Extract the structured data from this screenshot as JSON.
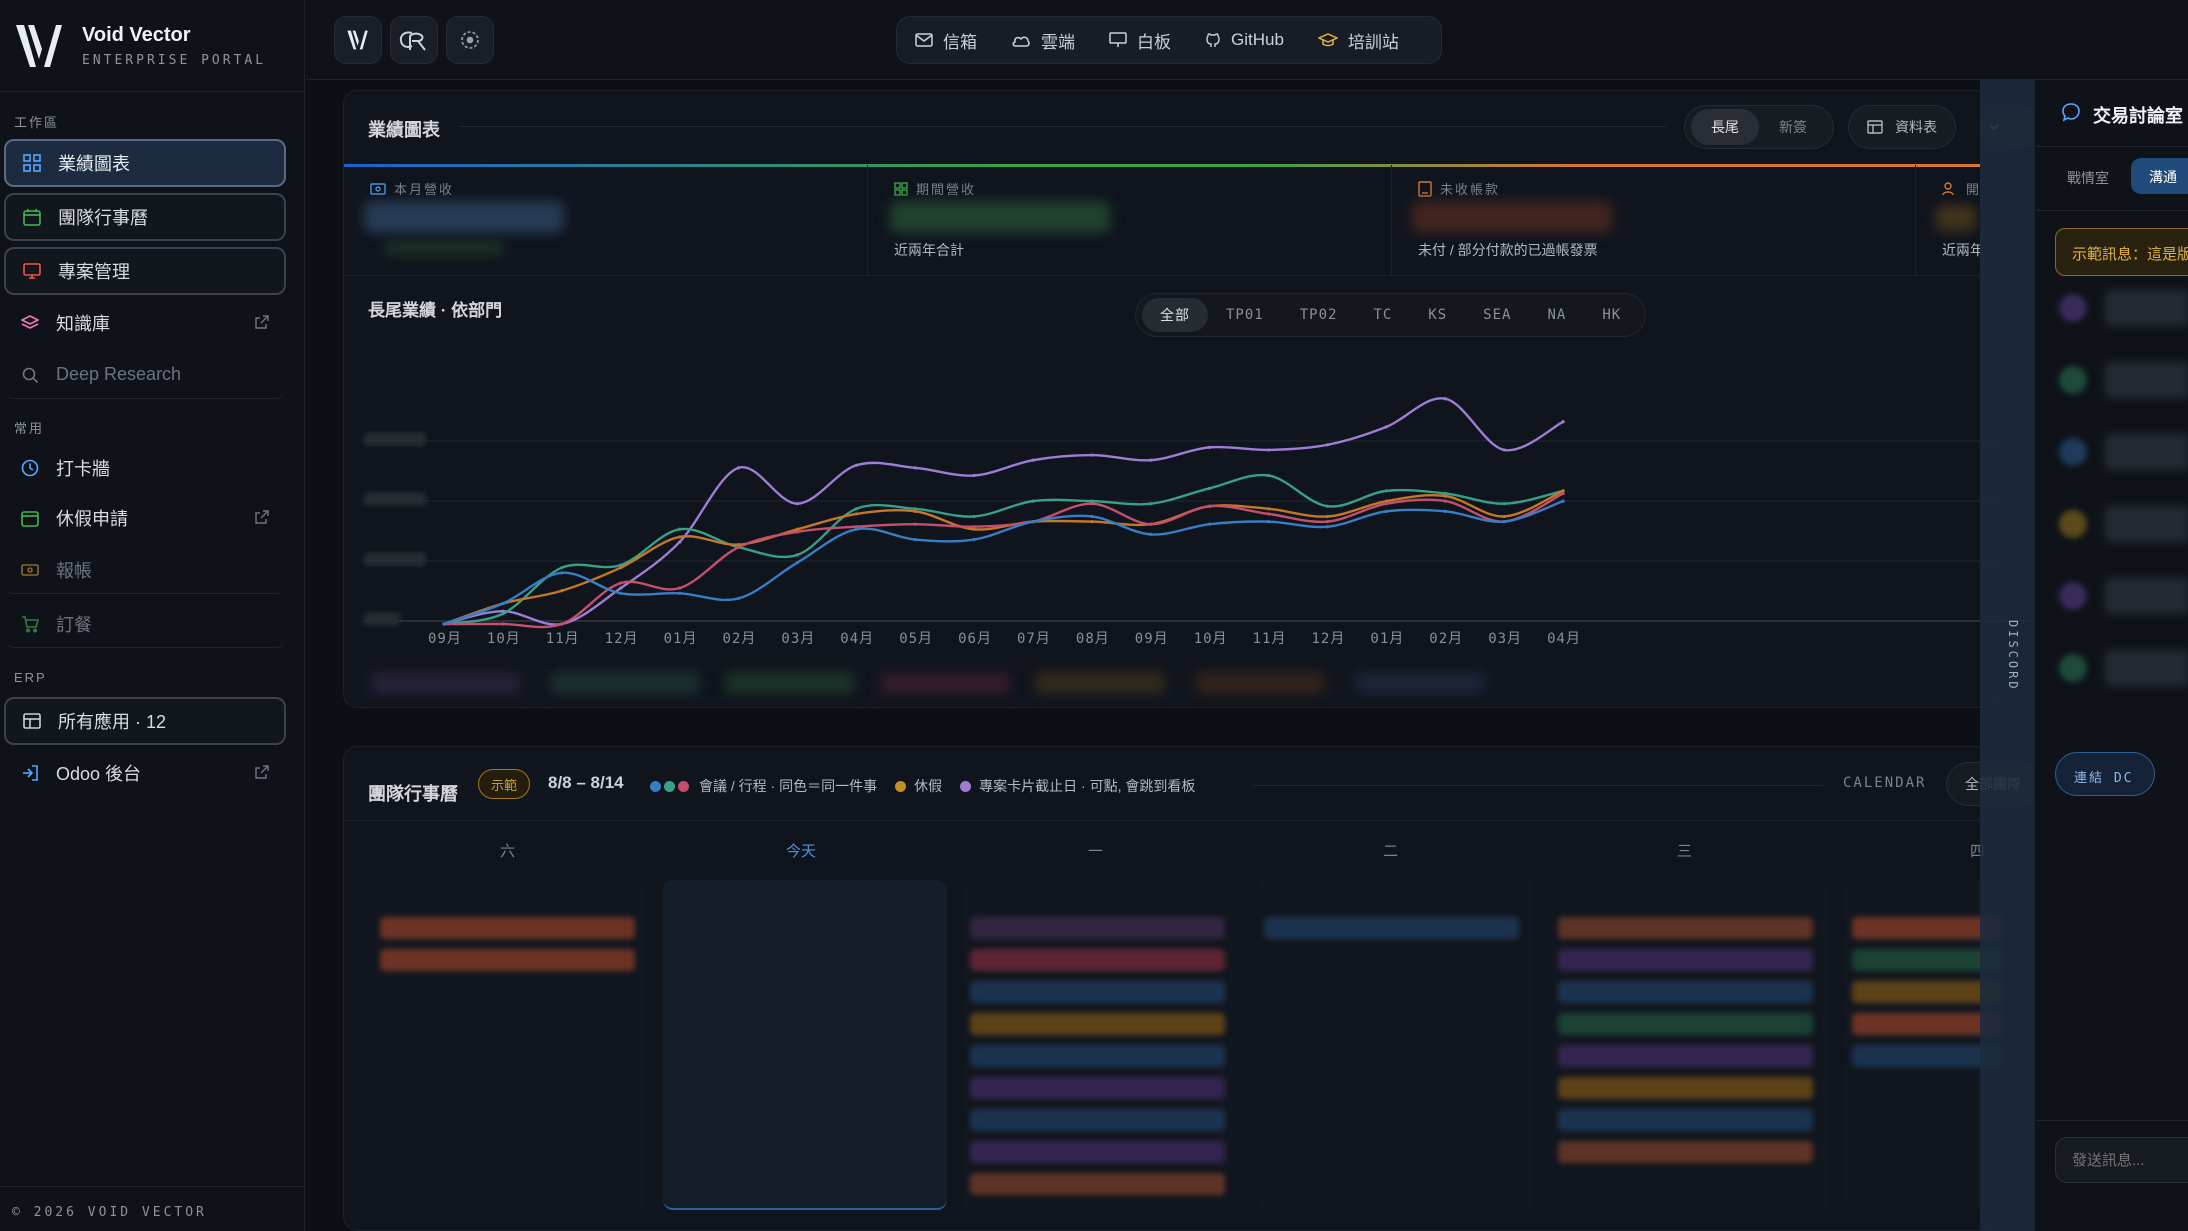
{
  "brand": {
    "name": "Void Vector",
    "subtitle": "ENTERPRISE PORTAL"
  },
  "sidebar": {
    "section_workspace": "工作區",
    "section_common": "常用",
    "section_erp": "ERP",
    "items": [
      {
        "label": "業績圖表",
        "icon": "grid-icon"
      },
      {
        "label": "團隊行事曆",
        "icon": "calendar-icon"
      },
      {
        "label": "專案管理",
        "icon": "monitor-icon"
      },
      {
        "label": "知識庫",
        "icon": "layers-icon"
      },
      {
        "label": "Deep Research",
        "icon": "search-icon"
      },
      {
        "label": "打卡牆",
        "icon": "clock-icon"
      },
      {
        "label": "休假申請",
        "icon": "calendar-icon"
      },
      {
        "label": "報帳",
        "icon": "receipt-icon"
      },
      {
        "label": "訂餐",
        "icon": "cart-icon"
      },
      {
        "label": "所有應用 · 12",
        "icon": "table-icon"
      },
      {
        "label": "Odoo 後台",
        "icon": "login-icon"
      }
    ],
    "footer": "© 2026 VOID VECTOR"
  },
  "topnav": {
    "items": [
      {
        "label": "信箱",
        "icon": "mail-icon"
      },
      {
        "label": "雲端",
        "icon": "cloud-icon"
      },
      {
        "label": "白板",
        "icon": "whiteboard-icon"
      },
      {
        "label": "GitHub",
        "icon": "github-icon"
      },
      {
        "label": "培訓站",
        "icon": "graduation-icon"
      }
    ]
  },
  "performance": {
    "title": "業績圖表",
    "toggle": [
      "長尾",
      "新簽"
    ],
    "toggle_active": "長尾",
    "datatable_label": "資料表",
    "kpis": [
      {
        "label": "本月營收",
        "sub": ""
      },
      {
        "label": "期間營收",
        "sub": "近兩年合計"
      },
      {
        "label": "未收帳款",
        "sub": "未付 / 部分付款的已過帳發票"
      },
      {
        "label": "開業客戶",
        "sub": "近兩年內有開業"
      }
    ],
    "chart_title": "長尾業績 · 依部門",
    "departments": [
      "全部",
      "TP01",
      "TP02",
      "TC",
      "KS",
      "SEA",
      "NA",
      "HK"
    ],
    "dept_active": "全部"
  },
  "chart_data": {
    "type": "line",
    "title": "長尾業績 · 依部門",
    "categories": [
      "09月",
      "10月",
      "11月",
      "12月",
      "01月",
      "02月",
      "03月",
      "04月",
      "05月",
      "06月",
      "07月",
      "08月",
      "09月",
      "10月",
      "11月",
      "12月",
      "01月",
      "02月",
      "03月",
      "04月"
    ],
    "ylim": [
      0,
      100
    ],
    "grid": true,
    "series": [
      {
        "color": "#b48cf2",
        "values": [
          0,
          5,
          0,
          14,
          32,
          61,
          47,
          62,
          61,
          58,
          64,
          66,
          64,
          69,
          68,
          70,
          77,
          88,
          68,
          79
        ]
      },
      {
        "color": "#3fb59a",
        "values": [
          0,
          4,
          22,
          23,
          37,
          30,
          27,
          45,
          45,
          42,
          48,
          48,
          47,
          53,
          58,
          46,
          52,
          51,
          47,
          52
        ]
      },
      {
        "color": "#e0862b",
        "values": [
          0,
          8,
          13,
          22,
          34,
          31,
          37,
          43,
          44,
          37,
          40,
          40,
          39,
          46,
          45,
          42,
          48,
          50,
          42,
          52
        ]
      },
      {
        "color": "#e05a7a",
        "values": [
          0,
          0,
          0,
          16,
          14,
          30,
          36,
          38,
          39,
          38,
          40,
          47,
          39,
          46,
          43,
          40,
          47,
          48,
          40,
          51
        ]
      },
      {
        "color": "#3d8fe0",
        "values": [
          0,
          8,
          20,
          12,
          12,
          10,
          24,
          37,
          33,
          33,
          40,
          42,
          35,
          39,
          40,
          38,
          44,
          44,
          40,
          48
        ]
      }
    ]
  },
  "calendar": {
    "title": "團隊行事曆",
    "badge": "示範",
    "range": "8/8 – 8/14",
    "legend_meeting": "會議 / 行程 · 同色＝同一件事",
    "legend_leave": "休假",
    "legend_project": "專案卡片截止日 · 可點, 會跳到看板",
    "calendar_label": "CALENDAR",
    "team_filter": "全部團隊",
    "days": [
      "六",
      "今天",
      "一",
      "二",
      "三",
      "四"
    ],
    "colors": {
      "meeting1": "#3d8fe0",
      "meeting2": "#3fb59a",
      "meeting3": "#e05a7a",
      "leave": "#e0a22b",
      "project": "#b48cf2"
    }
  },
  "chat": {
    "title": "交易討論室",
    "tabs": [
      "戰情室",
      "溝通"
    ],
    "tab_active": "溝通",
    "notice": "示範訊息：這是版",
    "connect": "連結 DC",
    "placeholder": "發送訊息...",
    "discord_label": "DISCORD"
  }
}
